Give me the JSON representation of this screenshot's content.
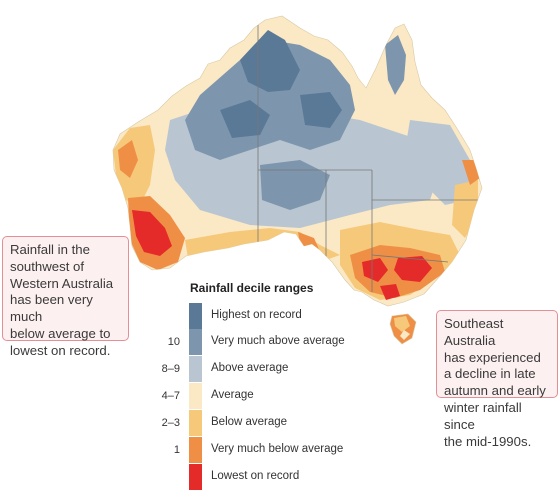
{
  "colors": {
    "highest": "#5a7996",
    "very_much_above": "#7d96ad",
    "above": "#b9c6d1",
    "average": "#fbe8c5",
    "below": "#f6c97a",
    "very_much_below": "#ef8f45",
    "lowest": "#e52a2a",
    "state_border": "#777777",
    "callout_border": "#e38f96",
    "callout_bg": "#fdf0f0"
  },
  "callouts": {
    "southwest_wa": {
      "lines": [
        "Rainfall in the",
        "southwest of",
        "Western Australia",
        "has been very much",
        "below average to",
        "lowest on record."
      ]
    },
    "southeast": {
      "lines": [
        "Southeast Australia",
        "has experienced",
        "a decline in late",
        "autumn and early",
        "winter rainfall since",
        "the mid-1990s."
      ]
    }
  },
  "legend": {
    "title": "Rainfall decile ranges",
    "items": [
      {
        "tick": "",
        "label": "Highest on record",
        "color": "#5a7996"
      },
      {
        "tick": "10",
        "label": "Very much above average",
        "color": "#7d96ad"
      },
      {
        "tick": "8–9",
        "label": "Above average",
        "color": "#b9c6d1"
      },
      {
        "tick": "4–7",
        "label": "Average",
        "color": "#fbe8c5"
      },
      {
        "tick": "2–3",
        "label": "Below average",
        "color": "#f6c97a"
      },
      {
        "tick": "1",
        "label": "Very much below average",
        "color": "#ef8f45"
      },
      {
        "tick": "",
        "label": "Lowest on record",
        "color": "#e52a2a"
      }
    ]
  }
}
